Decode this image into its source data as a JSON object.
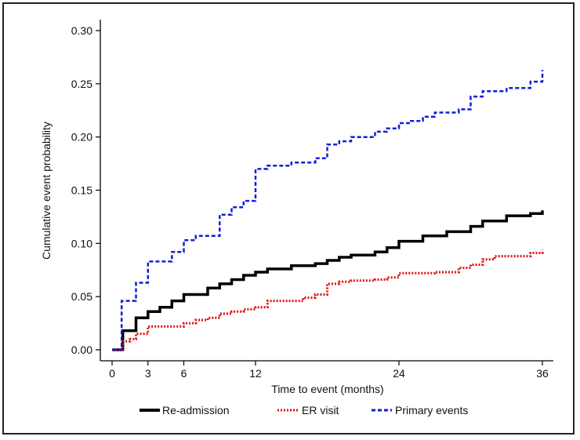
{
  "chart_data": {
    "type": "line",
    "step": true,
    "xlabel": "Time to event (months)",
    "ylabel": "Cumulative event probability",
    "xlim": [
      0,
      36
    ],
    "ylim": [
      0,
      0.3
    ],
    "xticks": [
      0,
      3,
      6,
      12,
      24,
      36
    ],
    "yticks": [
      0.0,
      0.05,
      0.1,
      0.15,
      0.2,
      0.25,
      0.3
    ],
    "ytick_labels": [
      "0.00",
      "0.05",
      "0.10",
      "0.15",
      "0.20",
      "0.25",
      "0.30"
    ],
    "grid": false,
    "legend_position": "bottom",
    "series": [
      {
        "name": "Re-admission",
        "color": "#000000",
        "style": "solid",
        "x": [
          0,
          0.9,
          2.0,
          3.0,
          4.0,
          5.0,
          6.0,
          8.0,
          9.0,
          10.0,
          11.0,
          12.0,
          13.0,
          15.0,
          17.0,
          18.0,
          19.0,
          20.0,
          22.0,
          23.0,
          24.0,
          26.0,
          28.0,
          30.0,
          31.0,
          33.0,
          35.0,
          36.0
        ],
        "y": [
          0,
          0.018,
          0.03,
          0.036,
          0.04,
          0.046,
          0.052,
          0.058,
          0.062,
          0.066,
          0.07,
          0.073,
          0.076,
          0.079,
          0.081,
          0.084,
          0.087,
          0.089,
          0.092,
          0.096,
          0.102,
          0.107,
          0.111,
          0.116,
          0.121,
          0.126,
          0.128,
          0.131
        ]
      },
      {
        "name": "ER visit",
        "color": "#e01010",
        "style": "dotted",
        "x": [
          0,
          0.9,
          1.5,
          2.0,
          3.0,
          6.0,
          7.0,
          8.0,
          9.0,
          10.0,
          11.0,
          12.0,
          13.0,
          16.0,
          17.0,
          18.0,
          19.0,
          20.0,
          22.0,
          23.0,
          24.0,
          27.0,
          29.0,
          30.0,
          31.0,
          32.0,
          35.0,
          36.0
        ],
        "y": [
          0,
          0.008,
          0.01,
          0.015,
          0.022,
          0.025,
          0.028,
          0.03,
          0.034,
          0.036,
          0.038,
          0.04,
          0.046,
          0.049,
          0.052,
          0.062,
          0.064,
          0.065,
          0.066,
          0.068,
          0.072,
          0.073,
          0.077,
          0.08,
          0.085,
          0.088,
          0.091,
          0.094
        ]
      },
      {
        "name": "Primary events",
        "color": "#1020d0",
        "style": "dashed",
        "x": [
          0,
          0.8,
          2.0,
          3.0,
          5.0,
          6.0,
          7.0,
          9.0,
          10.0,
          11.0,
          12.0,
          13.0,
          15.0,
          17.0,
          18.0,
          19.0,
          20.0,
          22.0,
          23.0,
          24.0,
          25.0,
          26.0,
          27.0,
          29.0,
          30.0,
          31.0,
          33.0,
          35.0,
          36.0
        ],
        "y": [
          0,
          0.046,
          0.063,
          0.083,
          0.092,
          0.103,
          0.107,
          0.127,
          0.134,
          0.14,
          0.17,
          0.173,
          0.176,
          0.18,
          0.193,
          0.196,
          0.2,
          0.205,
          0.208,
          0.213,
          0.215,
          0.219,
          0.223,
          0.226,
          0.238,
          0.243,
          0.246,
          0.252,
          0.263
        ]
      }
    ]
  }
}
